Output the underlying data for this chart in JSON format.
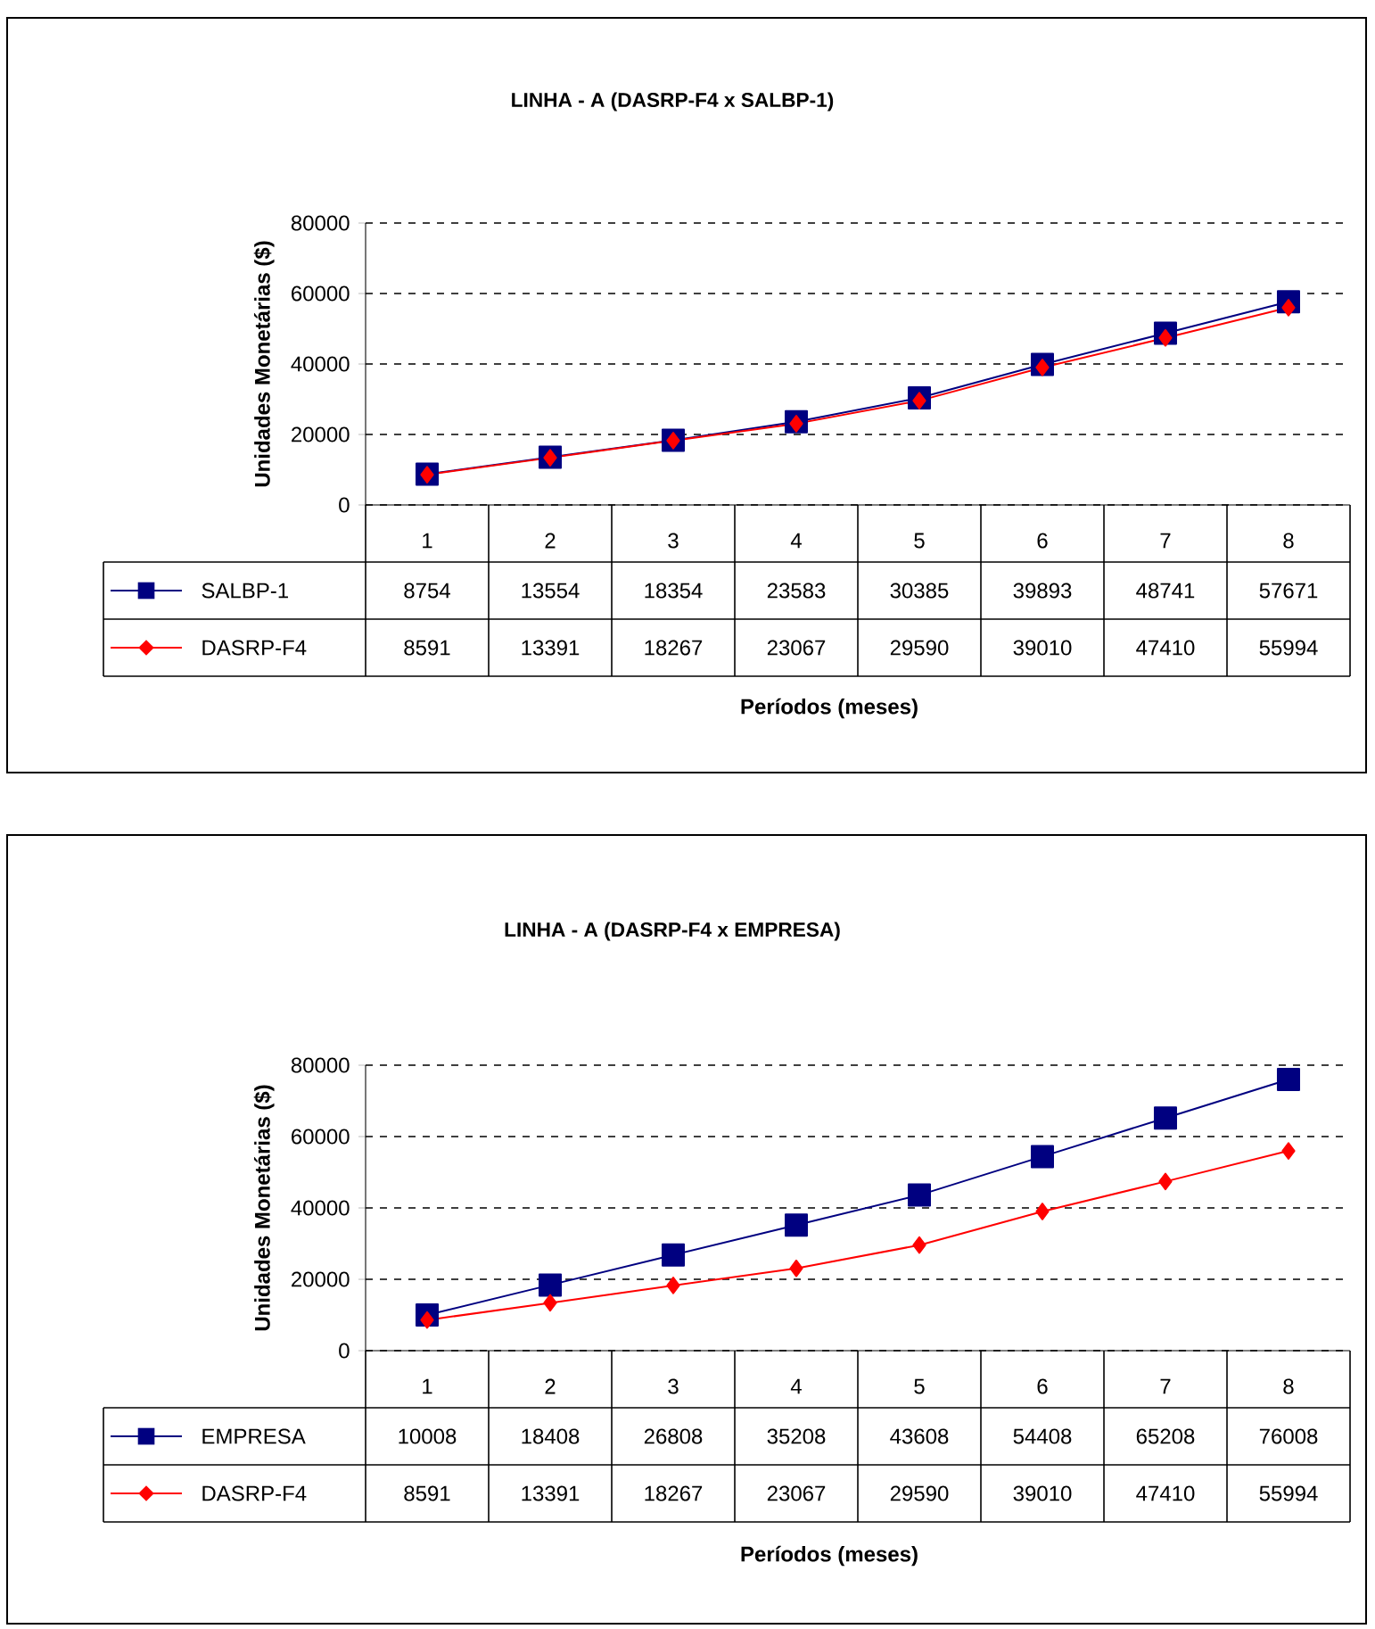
{
  "chart_data": [
    {
      "type": "line",
      "title": "LINHA - A (DASRP-F4 x SALBP-1)",
      "xlabel": "Períodos (meses)",
      "ylabel": "Unidades Monetárias ($)",
      "categories": [
        "1",
        "2",
        "3",
        "4",
        "5",
        "6",
        "7",
        "8"
      ],
      "ylim": [
        0,
        80000
      ],
      "yticks": [
        0,
        20000,
        40000,
        60000,
        80000
      ],
      "grid": "y",
      "legend": "bottom",
      "series": [
        {
          "name": "SALBP-1",
          "color": "#000080",
          "marker": "square",
          "values": [
            8754,
            13554,
            18354,
            23583,
            30385,
            39893,
            48741,
            57671
          ],
          "value_labels": [
            "8754",
            "13554",
            "18354",
            "23583",
            "30385",
            "39893",
            "48741",
            "57671"
          ]
        },
        {
          "name": "DASRP-F4",
          "color": "#ff0000",
          "marker": "diamond",
          "values": [
            8591,
            13391,
            18267,
            23067,
            29590,
            39010,
            47410,
            55994
          ],
          "value_labels": [
            "8591",
            "13391",
            "18267",
            "23067",
            "29590",
            "39010",
            "47410",
            "55994"
          ]
        }
      ]
    },
    {
      "type": "line",
      "title": "LINHA - A (DASRP-F4 x EMPRESA)",
      "xlabel": "Períodos (meses)",
      "ylabel": "Unidades Monetárias ($)",
      "categories": [
        "1",
        "2",
        "3",
        "4",
        "5",
        "6",
        "7",
        "8"
      ],
      "ylim": [
        0,
        80000
      ],
      "yticks": [
        0,
        20000,
        40000,
        60000,
        80000
      ],
      "grid": "y",
      "legend": "bottom",
      "series": [
        {
          "name": "EMPRESA",
          "color": "#000080",
          "marker": "square",
          "values": [
            10008,
            18408,
            26808,
            35208,
            43608,
            54408,
            65208,
            76008
          ],
          "value_labels": [
            "10008",
            "18408",
            "26808",
            "35208",
            "43608",
            "54408",
            "65208",
            "76008"
          ]
        },
        {
          "name": "DASRP-F4",
          "color": "#ff0000",
          "marker": "diamond",
          "values": [
            8591,
            13391,
            18267,
            23067,
            29590,
            39010,
            47410,
            55994
          ],
          "value_labels": [
            "8591",
            "13391",
            "18267",
            "23067",
            "29590",
            "39010",
            "47410",
            "55994"
          ]
        }
      ]
    }
  ]
}
